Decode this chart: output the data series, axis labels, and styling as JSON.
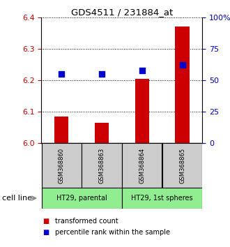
{
  "title": "GDS4511 / 231884_at",
  "samples": [
    "GSM368860",
    "GSM368863",
    "GSM368864",
    "GSM368865"
  ],
  "red_values": [
    6.085,
    6.065,
    6.205,
    6.37
  ],
  "blue_percentiles": [
    55,
    55,
    58,
    62
  ],
  "ylim_left": [
    6.0,
    6.4
  ],
  "ylim_right": [
    0,
    100
  ],
  "yticks_left": [
    6.0,
    6.1,
    6.2,
    6.3,
    6.4
  ],
  "yticks_right": [
    0,
    25,
    50,
    75,
    100
  ],
  "ytick_labels_right": [
    "0",
    "25",
    "50",
    "75",
    "100%"
  ],
  "groups": [
    {
      "label": "HT29, parental",
      "indices": [
        0,
        1
      ],
      "color": "#90ee90"
    },
    {
      "label": "HT29, 1st spheres",
      "indices": [
        2,
        3
      ],
      "color": "#90ee90"
    }
  ],
  "sample_box_color": "#cccccc",
  "bar_color": "#cc0000",
  "dot_color": "#0000cc",
  "bar_width": 0.35,
  "dot_size": 40,
  "left_tick_color": "#cc0000",
  "right_tick_color": "#0000cc",
  "cell_line_label": "cell line",
  "legend_items": [
    "transformed count",
    "percentile rank within the sample"
  ],
  "legend_colors": [
    "#cc0000",
    "#0000cc"
  ],
  "bg_color": "#ffffff"
}
